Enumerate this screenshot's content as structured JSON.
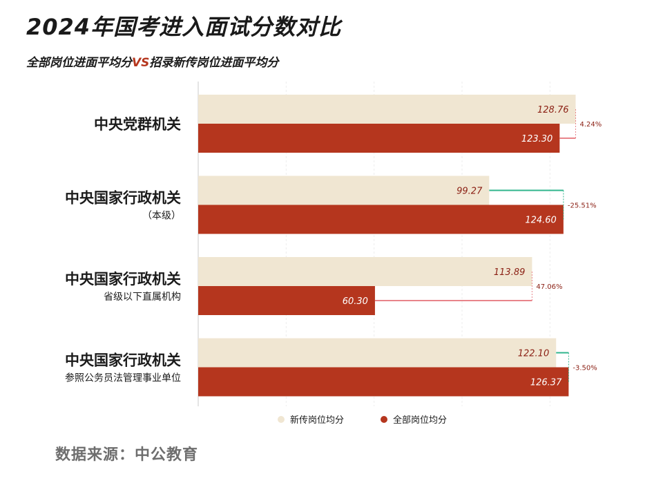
{
  "title": "2024年国考进入面试分数对比",
  "subtitle_left": "全部岗位进面平均分",
  "subtitle_vs": "VS",
  "subtitle_right": "招录新传岗位进面平均分",
  "source": "数据来源：中公教育",
  "colors": {
    "new": "#f0e6d2",
    "all": "#b5361e",
    "increase": "#e8848a",
    "decrease": "#2fb58c"
  },
  "chart_data": {
    "type": "bar",
    "orientation": "horizontal",
    "categories": [
      {
        "main": "中央党群机关",
        "sub": ""
      },
      {
        "main": "中央国家行政机关",
        "sub": "（本级）"
      },
      {
        "main": "中央国家行政机关",
        "sub": "省级以下直属机构"
      },
      {
        "main": "中央国家行政机关",
        "sub": "参照公务员法管理事业单位"
      }
    ],
    "series": [
      {
        "name": "新传岗位均分",
        "values": [
          128.76,
          99.27,
          113.89,
          122.1
        ],
        "labels": [
          "128.76",
          "99.27",
          "113.89",
          "122.10"
        ]
      },
      {
        "name": "全部岗位均分",
        "values": [
          123.3,
          124.6,
          60.3,
          126.37
        ],
        "labels": [
          "123.30",
          "124.60",
          "60.30",
          "126.37"
        ]
      }
    ],
    "differences": [
      "4.24%",
      "-25.51%",
      "47.06%",
      "-3.50%"
    ],
    "xlim": [
      0,
      135
    ],
    "legend_position": "bottom"
  }
}
